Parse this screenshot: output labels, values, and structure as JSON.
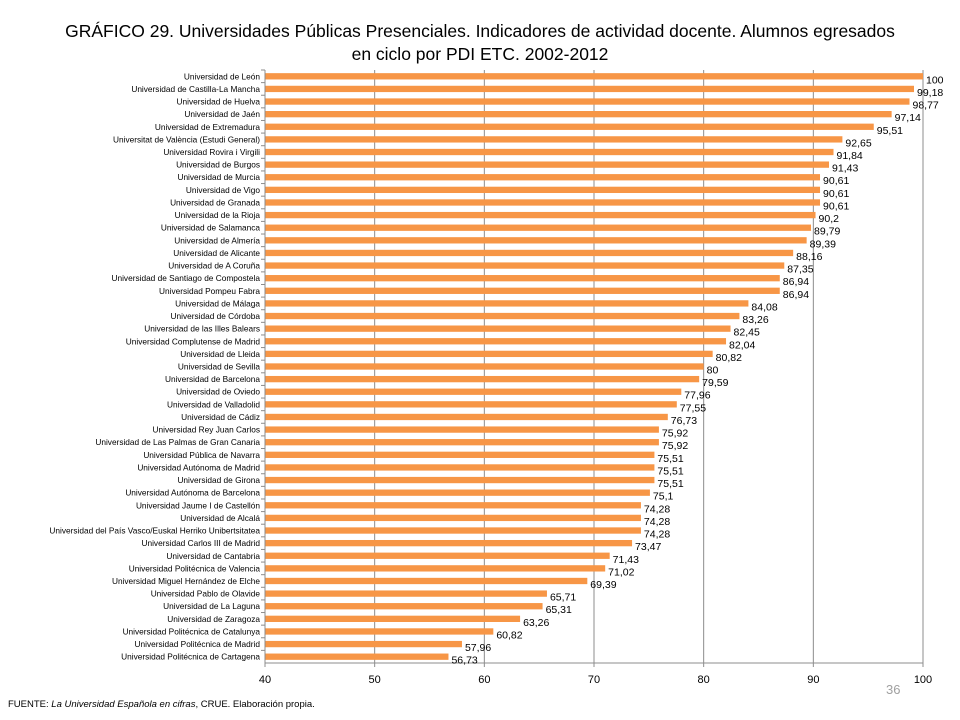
{
  "chart_data": {
    "type": "bar",
    "orientation": "horizontal",
    "title": "GRÁFICO 29. Universidades Públicas Presenciales. Indicadores de actividad docente. Alumnos egresados en ciclo por PDI ETC. 2002-2012",
    "xlim": [
      40,
      100
    ],
    "xticks": [
      "40",
      "50",
      "60",
      "70",
      "80",
      "90",
      "100"
    ],
    "grid": true,
    "bar_color": "#F79646",
    "categories": [
      "Universidad de León",
      "Universidad de Castilla-La Mancha",
      "Universidad de Huelva",
      "Universidad de Jaén",
      "Universidad de Extremadura",
      "Universitat de València (Estudi General)",
      "Universidad Rovira i Virgili",
      "Universidad de Burgos",
      "Universidad de Murcia",
      "Universidad de Vigo",
      "Universidad de Granada",
      "Universidad de la Rioja",
      "Universidad de Salamanca",
      "Universidad de Almería",
      "Universidad de Alicante",
      "Universidad de A Coruña",
      "Universidad de Santiago de Compostela",
      "Universidad Pompeu Fabra",
      "Universidad de Málaga",
      "Universidad de Córdoba",
      "Universidad de las Illes Balears",
      "Universidad Complutense de Madrid",
      "Universidad de Lleida",
      "Universidad de Sevilla",
      "Universidad de Barcelona",
      "Universidad de Oviedo",
      "Universidad de Valladolid",
      "Universidad de Cádiz",
      "Universidad Rey Juan Carlos",
      "Universidad de Las Palmas de Gran Canaria",
      "Universidad Pública de Navarra",
      "Universidad Autónoma de Madrid",
      "Universidad de Girona",
      "Universidad Autónoma de Barcelona",
      "Universidad Jaume I de Castellón",
      "Universidad de Alcalá",
      "Universidad del País Vasco/Euskal Herriko Unibertsitatea",
      "Universidad Carlos III de Madrid",
      "Universidad de Cantabria",
      "Universidad Politécnica de Valencia",
      "Universidad Miguel Hernández de Elche",
      "Universidad Pablo de Olavide",
      "Universidad de La Laguna",
      "Universidad de Zaragoza",
      "Universidad Politécnica de Catalunya",
      "Universidad Politécnica de Madrid",
      "Universidad Politécnica de Cartagena"
    ],
    "values": [
      100,
      99.18,
      98.77,
      97.14,
      95.51,
      92.65,
      91.84,
      91.43,
      90.61,
      90.61,
      90.61,
      90.2,
      89.79,
      89.39,
      88.16,
      87.35,
      86.94,
      86.94,
      84.08,
      83.26,
      82.45,
      82.04,
      80.82,
      80,
      79.59,
      77.96,
      77.55,
      76.73,
      75.92,
      75.92,
      75.51,
      75.51,
      75.51,
      75.1,
      74.28,
      74.28,
      74.28,
      73.47,
      71.43,
      71.02,
      69.39,
      65.71,
      65.31,
      63.26,
      60.82,
      57.96,
      56.73
    ],
    "value_labels": [
      "100",
      "99,18",
      "98,77",
      "97,14",
      "95,51",
      "92,65",
      "91,84",
      "91,43",
      "90,61",
      "90,61",
      "90,61",
      "90,2",
      "89,79",
      "89,39",
      "88,16",
      "87,35",
      "86,94",
      "86,94",
      "84,08",
      "83,26",
      "82,45",
      "82,04",
      "80,82",
      "80",
      "79,59",
      "77,96",
      "77,55",
      "76,73",
      "75,92",
      "75,92",
      "75,51",
      "75,51",
      "75,51",
      "75,1",
      "74,28",
      "74,28",
      "74,28",
      "73,47",
      "71,43",
      "71,02",
      "69,39",
      "65,71",
      "65,31",
      "63,26",
      "60,82",
      "57,96",
      "56,73"
    ]
  },
  "footer": {
    "prefix": "FUENTE: ",
    "source": "La Universidad Española en cifras",
    "suffix": ", CRUE. Elaboración propia."
  },
  "page_number": "36"
}
